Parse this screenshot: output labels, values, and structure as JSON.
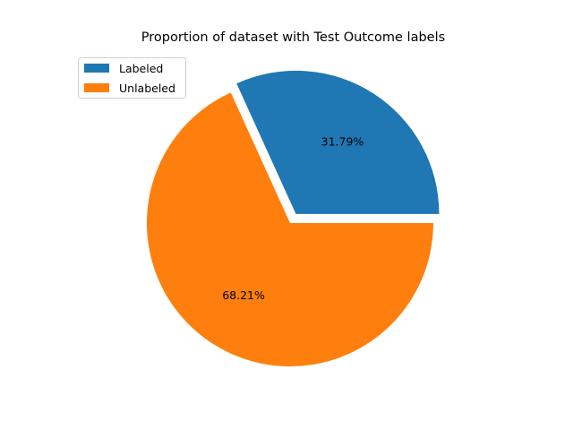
{
  "chart_data": {
    "type": "pie",
    "title": "Proportion of dataset with Test Outcome labels",
    "slices": [
      {
        "label": "Labeled",
        "value": 31.79,
        "display": "31.79%",
        "color": "#1f77b4",
        "exploded": true
      },
      {
        "label": "Unlabeled",
        "value": 68.21,
        "display": "68.21%",
        "color": "#ff7f0e",
        "exploded": false
      }
    ],
    "start_angle": 0,
    "direction": "counterclockwise",
    "legend": {
      "placement": "top-left"
    }
  }
}
